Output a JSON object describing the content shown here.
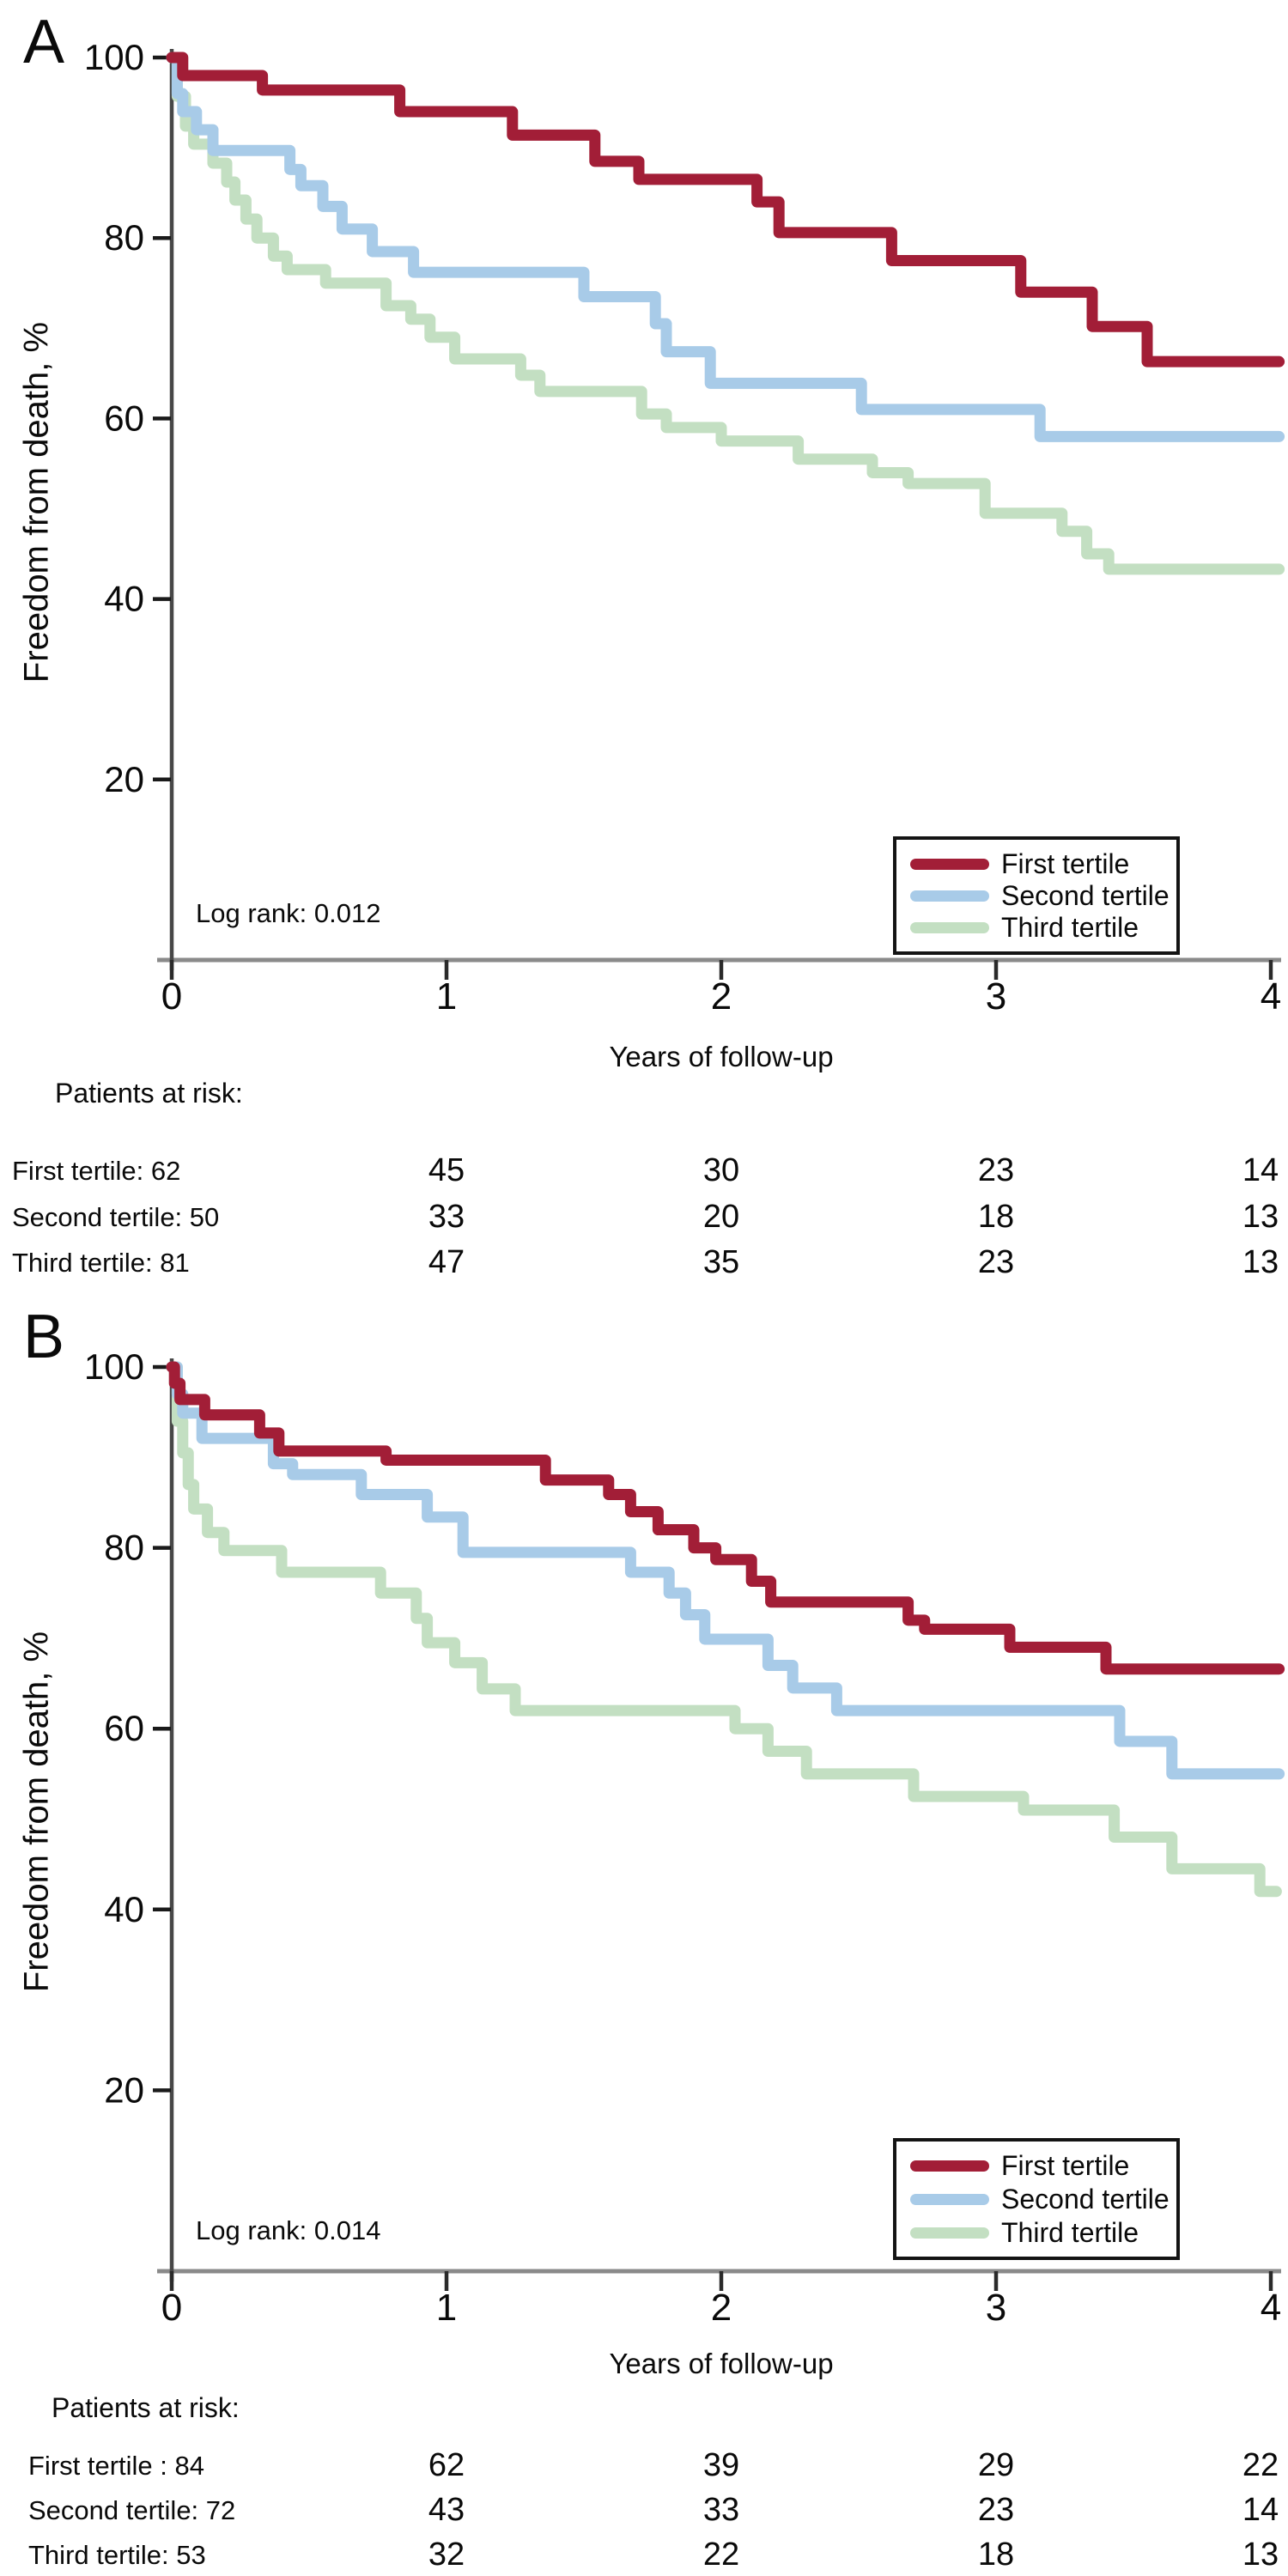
{
  "panels": [
    {
      "letter": "A",
      "ylabel": "Freedom from death, %",
      "xlabel": "Years of follow-up",
      "log_rank": "Log rank: 0.012",
      "legend": {
        "items": [
          {
            "label": "First tertile",
            "color": "#A21E37"
          },
          {
            "label": "Second tertile",
            "color": "#A8CBE8"
          },
          {
            "label": "Third tertile",
            "color": "#C3DFC2"
          }
        ]
      },
      "risk": {
        "heading": "Patients at risk:",
        "rows": [
          {
            "label": "First tertile: 62",
            "values": [
              "45",
              "30",
              "23",
              "14"
            ]
          },
          {
            "label": "Second tertile: 50",
            "values": [
              "33",
              "20",
              "18",
              "13"
            ]
          },
          {
            "label": "Third tertile: 81",
            "values": [
              "47",
              "35",
              "23",
              "13"
            ]
          }
        ]
      },
      "chart_data": {
        "type": "line",
        "subtype": "kaplan-meier-step",
        "xlabel": "Years of follow-up",
        "ylabel": "Freedom from death, %",
        "xlim": [
          0,
          4
        ],
        "ylim": [
          0,
          100
        ],
        "xticks": [
          "0",
          "1",
          "2",
          "3",
          "4"
        ],
        "yticks": [
          "20",
          "40",
          "60",
          "80",
          "100"
        ],
        "grid": false,
        "legend_position": "bottom-right",
        "annotation": "Log rank: 0.012",
        "series": [
          {
            "name": "First tertile",
            "color": "#A21E37",
            "points": [
              [
                0,
                100
              ],
              [
                0.04,
                98
              ],
              [
                0.33,
                96.4
              ],
              [
                0.83,
                94
              ],
              [
                1.24,
                91.4
              ],
              [
                1.54,
                88.5
              ],
              [
                1.7,
                86.5
              ],
              [
                2.13,
                84
              ],
              [
                2.21,
                80.6
              ],
              [
                2.62,
                77.5
              ],
              [
                3.09,
                74
              ],
              [
                3.35,
                70.2
              ],
              [
                3.55,
                66.3
              ],
              [
                4.03,
                66.3
              ]
            ]
          },
          {
            "name": "Second tertile",
            "color": "#A8CBE8",
            "points": [
              [
                0,
                100
              ],
              [
                0.02,
                96
              ],
              [
                0.04,
                94
              ],
              [
                0.09,
                92
              ],
              [
                0.15,
                89.7
              ],
              [
                0.43,
                87.6
              ],
              [
                0.47,
                85.8
              ],
              [
                0.55,
                83.5
              ],
              [
                0.62,
                81
              ],
              [
                0.73,
                78.5
              ],
              [
                0.88,
                76.2
              ],
              [
                1.5,
                73.5
              ],
              [
                1.76,
                70.5
              ],
              [
                1.8,
                67.4
              ],
              [
                1.96,
                63.9
              ],
              [
                2.51,
                61
              ],
              [
                3.16,
                58
              ],
              [
                4.03,
                58
              ]
            ]
          },
          {
            "name": "Third tertile",
            "color": "#C3DFC2",
            "points": [
              [
                0,
                100
              ],
              [
                0.02,
                95.7
              ],
              [
                0.05,
                92.4
              ],
              [
                0.08,
                90.4
              ],
              [
                0.15,
                88.3
              ],
              [
                0.2,
                86.2
              ],
              [
                0.23,
                84.2
              ],
              [
                0.27,
                82.1
              ],
              [
                0.31,
                80
              ],
              [
                0.37,
                78
              ],
              [
                0.42,
                76.5
              ],
              [
                0.56,
                75
              ],
              [
                0.78,
                72.5
              ],
              [
                0.87,
                71
              ],
              [
                0.94,
                69
              ],
              [
                1.03,
                66.6
              ],
              [
                1.27,
                64.8
              ],
              [
                1.34,
                63
              ],
              [
                1.71,
                60.5
              ],
              [
                1.8,
                59
              ],
              [
                2.0,
                57.5
              ],
              [
                2.28,
                55.5
              ],
              [
                2.55,
                54
              ],
              [
                2.68,
                52.8
              ],
              [
                2.96,
                49.5
              ],
              [
                3.24,
                47.5
              ],
              [
                3.33,
                45
              ],
              [
                3.41,
                43.3
              ],
              [
                4.03,
                43.3
              ]
            ]
          }
        ]
      }
    },
    {
      "letter": "B",
      "ylabel": "Freedom from death, %",
      "xlabel": "Years of follow-up",
      "log_rank": "Log rank: 0.014",
      "legend": {
        "items": [
          {
            "label": "First tertile",
            "color": "#A21E37"
          },
          {
            "label": "Second tertile",
            "color": "#A8CBE8"
          },
          {
            "label": "Third tertile",
            "color": "#C3DFC2"
          }
        ]
      },
      "risk": {
        "heading": "Patients at risk:",
        "rows": [
          {
            "label": "First tertile : 84",
            "values": [
              "62",
              "39",
              "29",
              "22"
            ]
          },
          {
            "label": "Second tertile: 72",
            "values": [
              "43",
              "33",
              "23",
              "14"
            ]
          },
          {
            "label": "Third tertile: 53",
            "values": [
              "32",
              "22",
              "18",
              "13"
            ]
          }
        ]
      },
      "chart_data": {
        "type": "line",
        "subtype": "kaplan-meier-step",
        "xlabel": "Years of follow-up",
        "ylabel": "Freedom from death, %",
        "xlim": [
          0,
          4
        ],
        "ylim": [
          0,
          100
        ],
        "xticks": [
          "0",
          "1",
          "2",
          "3",
          "4"
        ],
        "yticks": [
          "20",
          "40",
          "60",
          "80",
          "100"
        ],
        "grid": false,
        "legend_position": "bottom-right",
        "annotation": "Log rank: 0.014",
        "series": [
          {
            "name": "First tertile",
            "color": "#A21E37",
            "points": [
              [
                0,
                100
              ],
              [
                0.01,
                98.2
              ],
              [
                0.03,
                96.4
              ],
              [
                0.12,
                94.7
              ],
              [
                0.32,
                92.7
              ],
              [
                0.39,
                90.7
              ],
              [
                0.78,
                89.7
              ],
              [
                1.36,
                87.5
              ],
              [
                1.59,
                85.9
              ],
              [
                1.67,
                84
              ],
              [
                1.77,
                82
              ],
              [
                1.9,
                80
              ],
              [
                1.98,
                78.7
              ],
              [
                2.11,
                76.3
              ],
              [
                2.18,
                74
              ],
              [
                2.68,
                72
              ],
              [
                2.74,
                71
              ],
              [
                3.05,
                69
              ],
              [
                3.4,
                66.6
              ],
              [
                4.03,
                66.6
              ]
            ]
          },
          {
            "name": "Second tertile",
            "color": "#A8CBE8",
            "points": [
              [
                0,
                100
              ],
              [
                0.02,
                97
              ],
              [
                0.04,
                94.9
              ],
              [
                0.11,
                92.1
              ],
              [
                0.37,
                89.3
              ],
              [
                0.44,
                88.1
              ],
              [
                0.69,
                85.9
              ],
              [
                0.93,
                83.4
              ],
              [
                1.06,
                79.5
              ],
              [
                1.67,
                77.3
              ],
              [
                1.81,
                75
              ],
              [
                1.87,
                72.6
              ],
              [
                1.94,
                69.9
              ],
              [
                2.17,
                67
              ],
              [
                2.26,
                64.5
              ],
              [
                2.42,
                62
              ],
              [
                3.45,
                58.6
              ],
              [
                3.64,
                55
              ],
              [
                4.03,
                55
              ]
            ]
          },
          {
            "name": "Third tertile",
            "color": "#C3DFC2",
            "points": [
              [
                0,
                100
              ],
              [
                0.02,
                94
              ],
              [
                0.04,
                90.5
              ],
              [
                0.06,
                87
              ],
              [
                0.08,
                84.3
              ],
              [
                0.13,
                81.7
              ],
              [
                0.19,
                79.7
              ],
              [
                0.4,
                77.3
              ],
              [
                0.76,
                75
              ],
              [
                0.89,
                72.2
              ],
              [
                0.93,
                69.5
              ],
              [
                1.03,
                67.3
              ],
              [
                1.13,
                64.4
              ],
              [
                1.25,
                62
              ],
              [
                2.05,
                60
              ],
              [
                2.17,
                57.5
              ],
              [
                2.31,
                55
              ],
              [
                2.7,
                52.5
              ],
              [
                3.1,
                51
              ],
              [
                3.43,
                48
              ],
              [
                3.64,
                44.5
              ],
              [
                3.96,
                42
              ],
              [
                4.02,
                42
              ]
            ]
          }
        ]
      }
    }
  ]
}
